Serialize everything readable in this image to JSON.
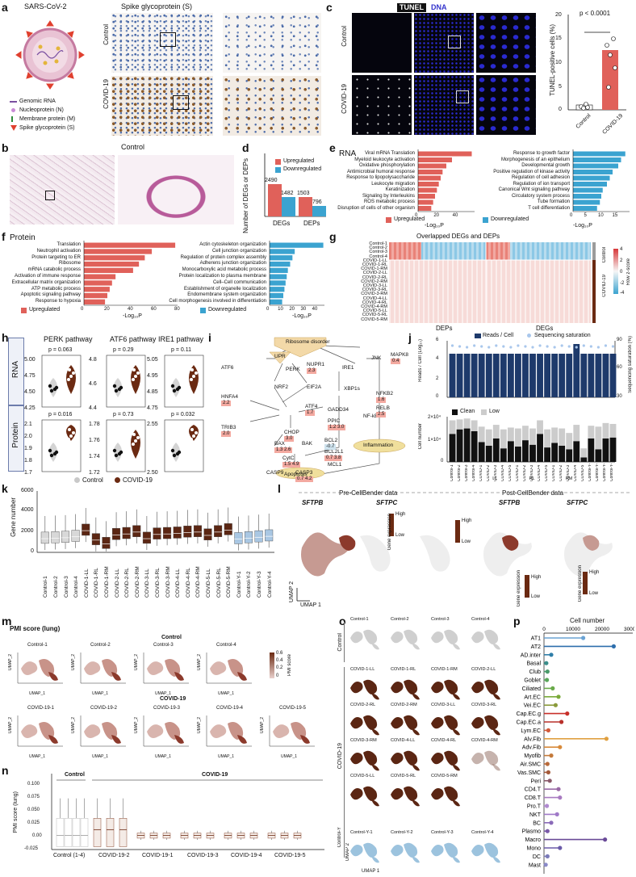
{
  "panels": {
    "a": "a",
    "b": "b",
    "c": "c",
    "d": "d",
    "e": "e",
    "f": "f",
    "g": "g",
    "h": "h",
    "i": "i",
    "j": "j",
    "k": "k",
    "l": "l",
    "m": "m",
    "n": "n",
    "o": "o",
    "p": "p"
  },
  "a": {
    "virus_title": "SARS-CoV-2",
    "spike_title": "Spike glycoprotein (S)",
    "legend": [
      "Genomic RNA",
      "Nucleoprotein (N)",
      "Membrane protein (M)",
      "Spike glycoprotein (S)"
    ],
    "rows": [
      "Control",
      "COVID-19"
    ]
  },
  "b": {
    "title": "Control"
  },
  "c": {
    "header_tunel": "TUNEL",
    "header_dna": "DNA",
    "rows": [
      "Control",
      "COVID-19"
    ],
    "pvalue": "p < 0.0001",
    "ylabel": "TUNEL-positive cells (%)",
    "yticks": [
      "0",
      "5",
      "10",
      "15",
      "20"
    ],
    "xticks": [
      "Control",
      "COVID-19"
    ]
  },
  "d": {
    "ylabel": "Number of DEGs or DEPs",
    "legend": [
      "Upregulated",
      "Downregulated"
    ],
    "colors": {
      "up": "#e0615a",
      "down": "#3ba3d0"
    },
    "xticks": [
      "DEGs",
      "DEPs"
    ],
    "labels": [
      "2490",
      "1482",
      "1503",
      "796"
    ]
  },
  "e": {
    "title": "RNA",
    "up_terms": [
      "Viral mRNA Translation",
      "Myeloid leukocyte activation",
      "Oxidative phosphorylation",
      "Antimicrobial humoral response",
      "Response to lipopolysaccharide",
      "Leukocyte migration",
      "Keratinization",
      "Signaling by Interleukins",
      "ROS metabolic process",
      "Disruption of cells of other organism"
    ],
    "down_terms": [
      "Response to growth factor",
      "Morphogenesis of an epithelium",
      "Developmental growth",
      "Positive regulation of kinase activity",
      "Regulation of cell adhesion",
      "Regulation of ion transport",
      "Canonical Wnt signaling pathway",
      "Circulatory system process",
      "Tube formation",
      "T cell differentiation"
    ],
    "up_label": "Upregulated",
    "down_label": "Downregulated",
    "up_ticks": [
      "0",
      "20",
      "40"
    ],
    "down_ticks": [
      "0",
      "5",
      "10",
      "15"
    ],
    "xlabel": "-Log₁₀P"
  },
  "f": {
    "title": "Protein",
    "up_terms": [
      "Translation",
      "Neutrophil activation",
      "Protein targeting to ER",
      "Ribosome",
      "mRNA catabolic process",
      "Activation of immune response",
      "Extracellular matrix organization",
      "ATP metabolic process",
      "Apoptotic signaling pathway",
      "Response to hypoxia"
    ],
    "down_terms": [
      "Actin cytoskeleton organization",
      "Cell junction organization",
      "Regulation of protein complex assembly",
      "Adherens junction organization",
      "Monocarboxylic acid metabolic process",
      "Protein localization to plasma membrane",
      "Cell–Cell communication",
      "Establishment of organelle localization",
      "Endomembrane system organization",
      "Cell morphogenesis involved in differentiation"
    ],
    "up_label": "Upregulated",
    "down_label": "Downregulated",
    "up_ticks": [
      "0",
      "20",
      "40",
      "60",
      "80"
    ],
    "down_ticks": [
      "0",
      "10",
      "20",
      "30",
      "40"
    ],
    "xlabel": "-Log₁₀P"
  },
  "g": {
    "title": "Overlapped DEGs and DEPs",
    "samples": [
      "Control-1",
      "Control-2",
      "Control-3",
      "Control-4",
      "COVID-1-LL",
      "COVID-1-RL",
      "COVID-1-RM",
      "COVID-2-LL",
      "COVID-2-RL",
      "COVID-2-RM",
      "COVID-3-LL",
      "COVID-3-RL",
      "COVID-3-RM",
      "COVID-4-LL",
      "COVID-4-RL",
      "COVID-4-RM",
      "COVID-5-LL",
      "COVID-5-RL",
      "COVID-5-RM"
    ],
    "group_labels": [
      "Control",
      "COVID-19"
    ],
    "xlabels": [
      "DEPs",
      "DEGs"
    ],
    "scale_title": "Row z-score",
    "scale_ticks": [
      "4",
      "2",
      "0",
      "-2",
      "-4"
    ]
  },
  "h": {
    "titles": [
      "PERK pathway",
      "ATF6 pathway",
      "IRE1 pathway"
    ],
    "rows": [
      "RNA",
      "Protein"
    ],
    "pvalues_rna": [
      "p = 0.063",
      "p = 0.29",
      "p = 0.11"
    ],
    "pvalues_protein": [
      "p = 0.016",
      "p = 0.73",
      "p = 0.032"
    ],
    "yticks_rna": [
      [
        "5.00",
        "4.75",
        "4.50",
        "4.25"
      ],
      [
        "4.8",
        "4.6",
        "4.4"
      ],
      [
        "5.05",
        "4.95",
        "4.85",
        "4.75"
      ]
    ],
    "yticks_protein": [
      [
        "2.1",
        "2.0",
        "1.9",
        "1.8",
        "1.7"
      ],
      [
        "1.78",
        "1.76",
        "1.74",
        "1.72"
      ],
      [
        "2.55",
        "2.50"
      ]
    ],
    "legend": [
      "Control",
      "COVID-19"
    ],
    "colors": {
      "control": "#c9c9c9",
      "covid": "#6b2a12"
    }
  },
  "i": {
    "nodes": {
      "ribosome": "Ribosome disorder",
      "upr": "UPR",
      "perk": "PERK",
      "ire1": "IRE1",
      "jnk": "JNK",
      "nupr1": "NUPR1",
      "mapk8": "MAPK8",
      "atf6": "ATF6",
      "hnfa4": "HNFA4",
      "nrf2": "NRF2",
      "eif2a": "EIF2A",
      "xbp1s": "XBP1s",
      "nfkb2": "NFKB2",
      "relb": "RELB",
      "nfkb": "NF-kB",
      "atf4": "ATF4",
      "gadd34": "GADD34",
      "ppic": "PPIC",
      "trib3": "TRIB3",
      "chop": "CHOP",
      "bcl2": "BCL2",
      "bcl2l1": "BCL2L1",
      "mcl1": "MCL1",
      "bax": "BAX",
      "bak": "BAK",
      "inflammation": "Inflammation",
      "cytc": "CytC",
      "casp9": "CASP9",
      "casp3": "CASP3",
      "apoptosis": "Apoptosis"
    },
    "values": {
      "nupr1": "2.3",
      "mapk8": "0.4",
      "hnfa4": "2.2",
      "atf4": "1.7",
      "ppic": "1.2 3.0",
      "nfkb2": "1.6",
      "relb": "2.5",
      "trib3": "2.0",
      "chop": "3.0",
      "bcl2": "-0.7",
      "bcl2l1": "0.7 3.8",
      "bax": "1.3 2.6",
      "cytc": "1.5 4.9",
      "casp3": "0.7 4.2"
    }
  },
  "j": {
    "legend": [
      "Reads / Cell",
      "Sequencing saturation"
    ],
    "ylabel_top": "Reads / Cell (Log₁₀)",
    "ylabel_top_right": "Sequencing saturation (%)",
    "yticks_top": [
      "6",
      "5",
      "4",
      "3",
      "2",
      "1",
      "0"
    ],
    "yticks_top_right": [
      "90",
      "80",
      "70",
      "60",
      "50",
      "40",
      "30"
    ],
    "legend_bottom": [
      "Clean",
      "Low"
    ],
    "ylabel_bottom": "Cell number",
    "yticks_bottom": [
      "2×10⁴",
      "1×10⁴",
      "0"
    ],
    "samples": [
      "Control-1",
      "Control-2",
      "Control-3",
      "Control-4",
      "COVID-1",
      "COVID-2",
      "COVID-3",
      "COVID-4",
      "COVID-5",
      "COVID-1",
      "COVID-2",
      "COVID-3",
      "COVID-4",
      "COVID-5",
      "COVID-1",
      "COVID-2",
      "COVID-3",
      "COVID-4",
      "COVID-5",
      "Control-Y-1",
      "Control-Y-2",
      "Control-Y-3",
      "Control-Y-4"
    ],
    "group_labels": [
      "LL",
      "RL",
      "RM"
    ]
  },
  "k": {
    "ylabel": "Gene number",
    "yticks": [
      "6000",
      "4000",
      "2000",
      "0"
    ],
    "samples": [
      "Control-1",
      "Control-2",
      "Control-3",
      "Control-4",
      "COVID-1-LL",
      "COVID-1-RL",
      "COVID-1-RM",
      "COVID-2-LL",
      "COVID-2-RL",
      "COVID-2-RM",
      "COVID-3-LL",
      "COVID-3-RL",
      "COVID-3-RM",
      "COVID-4-LL",
      "COVID-4-RL",
      "COVID-4-RM",
      "COVID-5-LL",
      "COVID-5-RL",
      "COVID-5-RM",
      "Control-Y-1",
      "Control-Y-2",
      "Control-Y-3",
      "Control-Y-4"
    ]
  },
  "l": {
    "pre_title": "Pre-CellBender data",
    "post_title": "Post-CellBender data",
    "genes": [
      "SFTPB",
      "SFTPC",
      "SFTPB",
      "SFTPC"
    ],
    "high": "High",
    "low": "Low",
    "scale_label": "Gene expression",
    "xlabel": "UMAP 1",
    "ylabel": "UMAP 2"
  },
  "m": {
    "title": "PMI score (lung)",
    "control_title": "Control",
    "covid_title": "COVID-19",
    "control_samples": [
      "Control-1",
      "Control-2",
      "Control-3",
      "Control-4"
    ],
    "covid_samples": [
      "COVID-19-1",
      "COVID-19-2",
      "COVID-19-3",
      "COVID-19-4",
      "COVID-19-5"
    ],
    "scale_label": "PMI score",
    "scale_ticks": [
      "0.6",
      "0.4",
      "0.2",
      "0"
    ],
    "xlabel": "UMAP_1",
    "ylabel": "UMAP_2",
    "xticks": [
      "-10",
      "0",
      "10"
    ]
  },
  "n": {
    "ylabel": "PMI score (lung)",
    "yticks": [
      "0.100",
      "0.075",
      "0.050",
      "0.025",
      "0.00",
      "-0.025"
    ],
    "groups": [
      "Control",
      "COVID-19"
    ],
    "xlabels": [
      "Control (1-4)",
      "COVID-19-2",
      "COVID-19-1",
      "COVID-19-3",
      "COVID-19-4",
      "COVID-19-5"
    ]
  },
  "o": {
    "groups": [
      "Control",
      "COVID-19",
      "Control-Y"
    ],
    "control": [
      "Control-1",
      "Control-2",
      "Control-3",
      "Control-4"
    ],
    "covid": [
      "COVID-1-LL",
      "COVID-1-RL",
      "COVID-1-RM",
      "COVID-2-LL",
      "COVID-2-RL",
      "COVID-2-RM",
      "COVID-3-LL",
      "COVID-3-RL",
      "COVID-3-RM",
      "COVID-4-LL",
      "COVID-4-RL",
      "COVID-4-RM",
      "COVID-5-LL",
      "COVID-5-RL",
      "COVID-5-RM"
    ],
    "control_y": [
      "Control-Y-1",
      "Control-Y-2",
      "Control-Y-3",
      "Control-Y-4"
    ],
    "xlabel": "UMAP 1",
    "ylabel": "UMAP 2"
  },
  "p": {
    "title": "Cell number",
    "xticks": [
      "0",
      "10000",
      "20000",
      "30000"
    ],
    "cells": [
      "AT1",
      "AT2",
      "AD.inter",
      "Basal",
      "Club",
      "Goblet",
      "Ciliated",
      "Art.EC",
      "Vei.EC",
      "Cap.EC.g",
      "Cap.EC.a",
      "Lym.EC",
      "Alv.Fib",
      "Adv.Fib",
      "Myofib",
      "Air.SMC",
      "Vas.SMC",
      "Peri",
      "CD4.T",
      "CD8.T",
      "Pro.T",
      "NKT",
      "BC",
      "Plasmo",
      "Macro",
      "Mono",
      "DC",
      "Mast"
    ]
  },
  "chart_data": [
    {
      "type": "bar",
      "panel": "d",
      "categories": [
        "DEGs",
        "DEPs"
      ],
      "series": [
        {
          "name": "Upregulated",
          "values": [
            2490,
            1503
          ]
        },
        {
          "name": "Downregulated",
          "values": [
            1482,
            796
          ]
        }
      ],
      "ylabel": "Number of DEGs or DEPs"
    },
    {
      "type": "bar",
      "panel": "e-up",
      "categories": [
        "Viral mRNA Translation",
        "Myeloid leukocyte activation",
        "Oxidative phosphorylation",
        "Antimicrobial humoral response",
        "Response to lipopolysaccharide",
        "Leukocyte migration",
        "Keratinization",
        "Signaling by Interleukins",
        "ROS metabolic process",
        "Disruption of cells of other organism"
      ],
      "values": [
        57,
        36,
        30,
        26,
        24,
        22,
        20,
        18,
        16,
        14
      ],
      "xlim": [
        0,
        60
      ]
    },
    {
      "type": "bar",
      "panel": "e-down",
      "categories": [
        "Response to growth factor",
        "Morphogenesis of an epithelium",
        "Developmental growth",
        "Positive regulation of kinase activity",
        "Regulation of cell adhesion",
        "Regulation of ion transport",
        "Canonical Wnt signaling pathway",
        "Circulatory system process",
        "Tube formation",
        "T cell differentiation"
      ],
      "values": [
        18.5,
        17,
        16,
        14,
        13,
        12,
        10.5,
        10,
        9.5,
        8.5
      ],
      "xlim": [
        0,
        20
      ]
    },
    {
      "type": "bar",
      "panel": "f-up",
      "categories": [
        "Translation",
        "Neutrophil activation",
        "Protein targeting to ER",
        "Ribosome",
        "mRNA catabolic process",
        "Activation of immune response",
        "Extracellular matrix organization",
        "ATP metabolic process",
        "Apoptotic signaling pathway",
        "Response to hypoxia"
      ],
      "values": [
        78,
        58,
        52,
        47,
        42,
        27,
        24,
        22,
        20,
        18
      ],
      "xlim": [
        0,
        80
      ]
    },
    {
      "type": "bar",
      "panel": "f-down",
      "categories": [
        "Actin cytoskeleton organization",
        "Cell junction organization",
        "Regulation of protein complex assembly",
        "Adherens junction organization",
        "Monocarboxylic acid metabolic process",
        "Protein localization to plasma membrane",
        "Cell–Cell communication",
        "Establishment of organelle localization",
        "Endomembrane system organization",
        "Cell morphogenesis involved in differentiation"
      ],
      "values": [
        47,
        22,
        20,
        18,
        16,
        15,
        14,
        13,
        12,
        11
      ],
      "xlim": [
        0,
        48
      ]
    },
    {
      "type": "bar",
      "panel": "c",
      "categories": [
        "Control",
        "COVID-19"
      ],
      "values": [
        0.8,
        12.5
      ],
      "ylim": [
        0,
        20
      ]
    },
    {
      "type": "bar",
      "panel": "p",
      "categories": [
        "AT1",
        "AT2",
        "AD.inter",
        "Basal",
        "Club",
        "Goblet",
        "Ciliated",
        "Art.EC",
        "Vei.EC",
        "Cap.EC.g",
        "Cap.EC.a",
        "Lym.EC",
        "Alv.Fib",
        "Adv.Fib",
        "Myofib",
        "Air.SMC",
        "Vas.SMC",
        "Peri",
        "CD4.T",
        "CD8.T",
        "Pro.T",
        "NKT",
        "BC",
        "Plasmo",
        "Macro",
        "Mono",
        "DC",
        "Mast"
      ],
      "values": [
        13500,
        24000,
        2500,
        800,
        1200,
        1000,
        3000,
        5000,
        4000,
        8000,
        6000,
        1500,
        21500,
        5500,
        2500,
        1200,
        1500,
        2000,
        5000,
        5500,
        1000,
        4500,
        2500,
        1200,
        21000,
        5500,
        1200,
        600
      ],
      "xlim": [
        0,
        30000
      ]
    }
  ]
}
